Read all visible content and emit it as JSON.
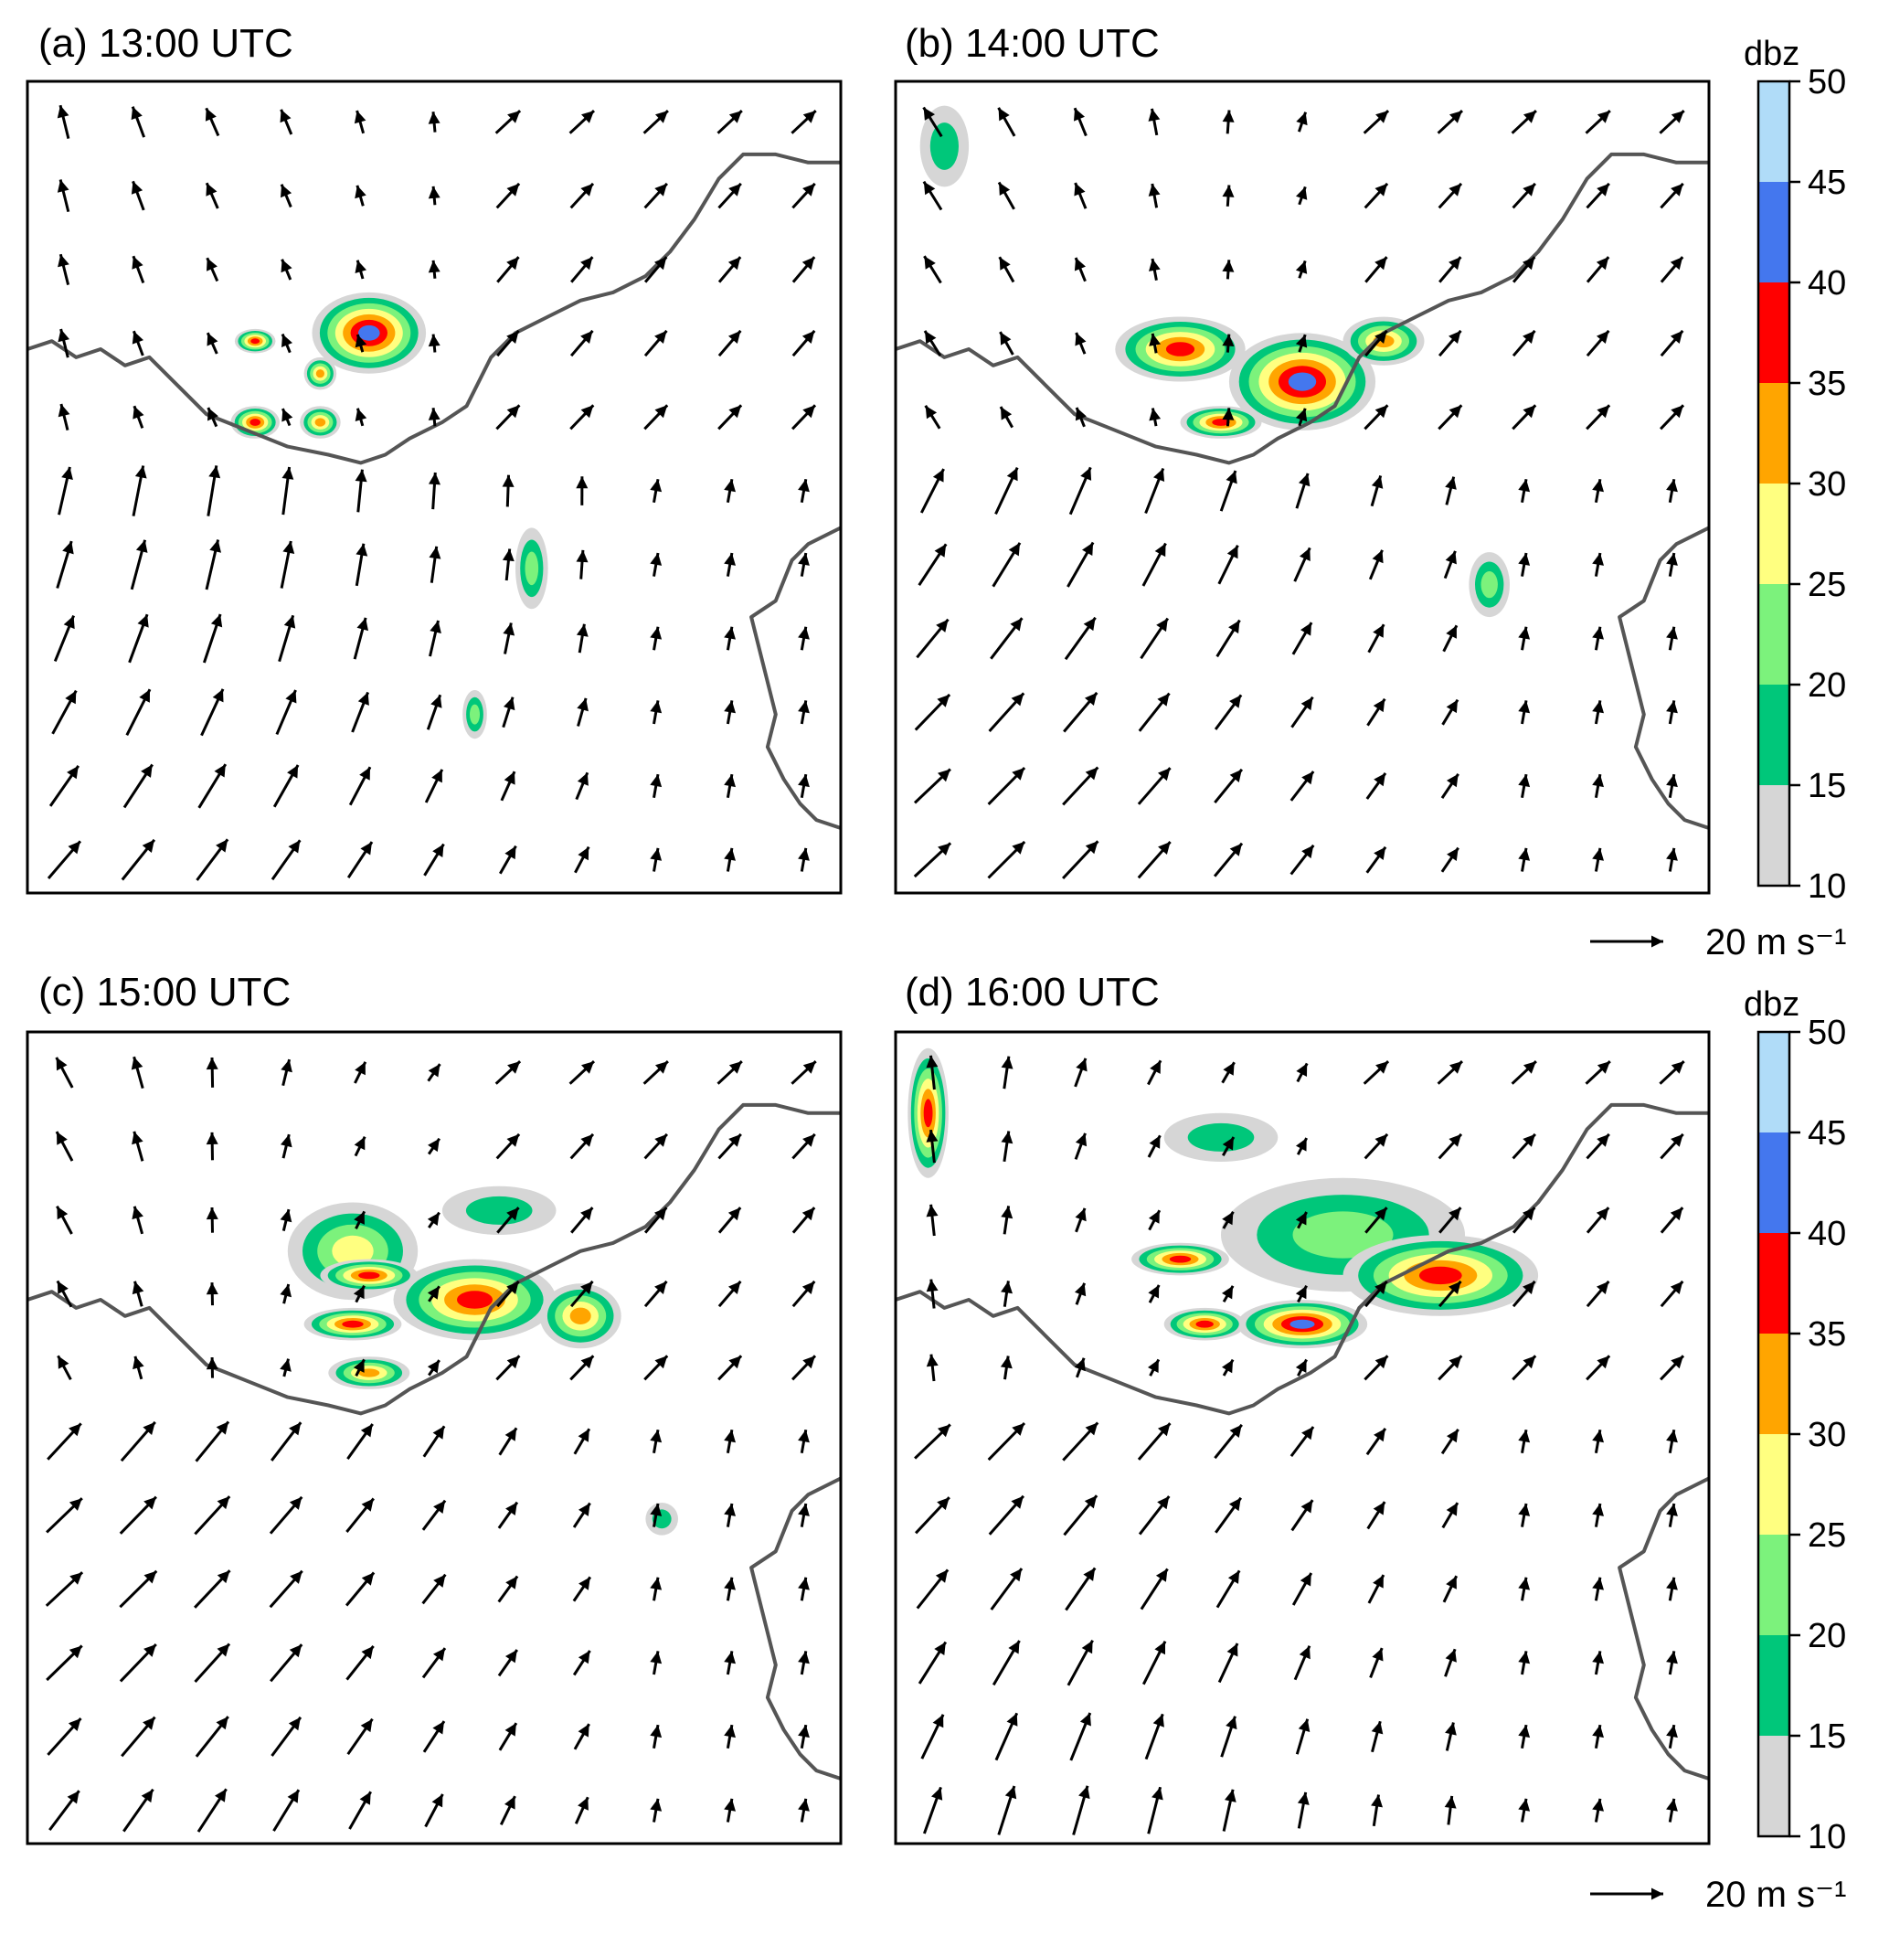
{
  "chart_data": {
    "type": "heatmap",
    "description_kind": "4-panel simulated radar reflectivity with wind vectors",
    "panels": [
      {
        "id": "a",
        "title": "(a) 13:00 UTC",
        "echoes": [
          {
            "cx": 0.42,
            "cy": 0.31,
            "rx": 0.07,
            "ry": 0.05,
            "peak": 45
          },
          {
            "cx": 0.28,
            "cy": 0.42,
            "rx": 0.03,
            "ry": 0.02,
            "peak": 40
          },
          {
            "cx": 0.36,
            "cy": 0.42,
            "rx": 0.025,
            "ry": 0.02,
            "peak": 35
          },
          {
            "cx": 0.62,
            "cy": 0.6,
            "rx": 0.02,
            "ry": 0.05,
            "peak": 25
          },
          {
            "cx": 0.55,
            "cy": 0.78,
            "rx": 0.015,
            "ry": 0.03,
            "peak": 25
          },
          {
            "cx": 0.28,
            "cy": 0.32,
            "rx": 0.025,
            "ry": 0.015,
            "peak": 40
          },
          {
            "cx": 0.36,
            "cy": 0.36,
            "rx": 0.02,
            "ry": 0.02,
            "peak": 35
          }
        ]
      },
      {
        "id": "b",
        "title": "(b) 14:00 UTC",
        "echoes": [
          {
            "cx": 0.35,
            "cy": 0.33,
            "rx": 0.08,
            "ry": 0.04,
            "peak": 40
          },
          {
            "cx": 0.5,
            "cy": 0.37,
            "rx": 0.09,
            "ry": 0.06,
            "peak": 45
          },
          {
            "cx": 0.4,
            "cy": 0.42,
            "rx": 0.05,
            "ry": 0.02,
            "peak": 40
          },
          {
            "cx": 0.6,
            "cy": 0.32,
            "rx": 0.05,
            "ry": 0.03,
            "peak": 35
          },
          {
            "cx": 0.73,
            "cy": 0.62,
            "rx": 0.025,
            "ry": 0.04,
            "peak": 25
          },
          {
            "cx": 0.06,
            "cy": 0.08,
            "rx": 0.03,
            "ry": 0.05,
            "peak": 20
          }
        ]
      },
      {
        "id": "c",
        "title": "(c) 15:00 UTC",
        "echoes": [
          {
            "cx": 0.4,
            "cy": 0.27,
            "rx": 0.08,
            "ry": 0.06,
            "peak": 30
          },
          {
            "cx": 0.55,
            "cy": 0.33,
            "rx": 0.1,
            "ry": 0.05,
            "peak": 40
          },
          {
            "cx": 0.68,
            "cy": 0.35,
            "rx": 0.05,
            "ry": 0.04,
            "peak": 35
          },
          {
            "cx": 0.58,
            "cy": 0.22,
            "rx": 0.07,
            "ry": 0.03,
            "peak": 20
          },
          {
            "cx": 0.42,
            "cy": 0.3,
            "rx": 0.06,
            "ry": 0.02,
            "peak": 40
          },
          {
            "cx": 0.4,
            "cy": 0.36,
            "rx": 0.06,
            "ry": 0.02,
            "peak": 40
          },
          {
            "cx": 0.42,
            "cy": 0.42,
            "rx": 0.05,
            "ry": 0.02,
            "peak": 35
          },
          {
            "cx": 0.78,
            "cy": 0.6,
            "rx": 0.02,
            "ry": 0.02,
            "peak": 20
          }
        ]
      },
      {
        "id": "d",
        "title": "(d) 16:00 UTC",
        "echoes": [
          {
            "cx": 0.55,
            "cy": 0.25,
            "rx": 0.15,
            "ry": 0.07,
            "peak": 25
          },
          {
            "cx": 0.67,
            "cy": 0.3,
            "rx": 0.12,
            "ry": 0.05,
            "peak": 40
          },
          {
            "cx": 0.5,
            "cy": 0.36,
            "rx": 0.08,
            "ry": 0.03,
            "peak": 45
          },
          {
            "cx": 0.35,
            "cy": 0.28,
            "rx": 0.06,
            "ry": 0.02,
            "peak": 40
          },
          {
            "cx": 0.38,
            "cy": 0.36,
            "rx": 0.05,
            "ry": 0.02,
            "peak": 40
          },
          {
            "cx": 0.04,
            "cy": 0.1,
            "rx": 0.025,
            "ry": 0.08,
            "peak": 40
          },
          {
            "cx": 0.4,
            "cy": 0.13,
            "rx": 0.07,
            "ry": 0.03,
            "peak": 20
          }
        ]
      }
    ],
    "colorbar": {
      "label": "dbz",
      "ticks": [
        "10",
        "15",
        "20",
        "25",
        "30",
        "35",
        "40",
        "45",
        "50"
      ],
      "levels": [
        {
          "from": 10,
          "to": 15,
          "color": "#d6d6d6"
        },
        {
          "from": 15,
          "to": 20,
          "color": "#00c77a"
        },
        {
          "from": 20,
          "to": 25,
          "color": "#7cf27c"
        },
        {
          "from": 25,
          "to": 30,
          "color": "#ffff80"
        },
        {
          "from": 30,
          "to": 35,
          "color": "#ffa500"
        },
        {
          "from": 35,
          "to": 40,
          "color": "#ff0000"
        },
        {
          "from": 40,
          "to": 45,
          "color": "#4477ee"
        },
        {
          "from": 45,
          "to": 50,
          "color": "#b0dcf8"
        }
      ]
    },
    "vector_scale": {
      "label": "20 m s⁻¹",
      "speed": 20
    }
  }
}
